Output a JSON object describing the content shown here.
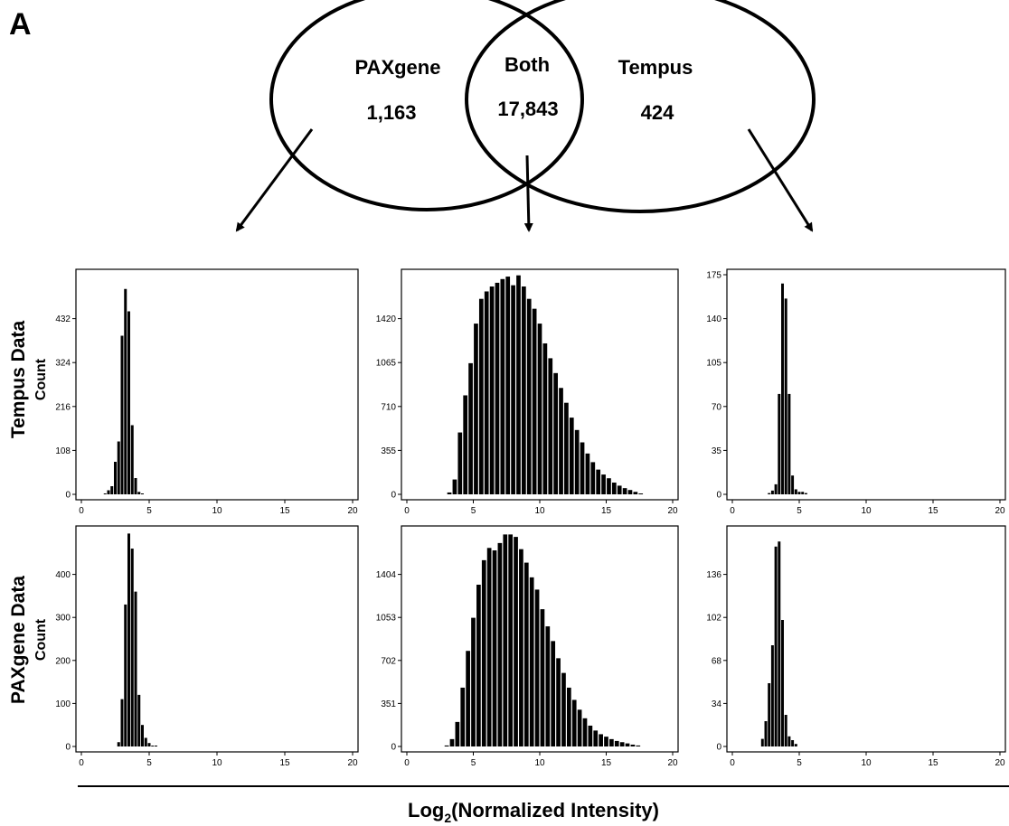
{
  "panel_label": "A",
  "venn": {
    "left": {
      "label": "PAXgene",
      "count": "1,163"
    },
    "both": {
      "label": "Both",
      "count": "17,843"
    },
    "right": {
      "label": "Tempus",
      "count": "424"
    }
  },
  "row_labels": [
    "Tempus Data",
    "PAXgene Data"
  ],
  "ylabel": "Count",
  "xlabel_base": "Log",
  "xlabel_sub": "2",
  "xlabel_rest": "(Normalized Intensity)",
  "chart_data": [
    {
      "type": "bar",
      "panel": "Tempus Data / PAXgene only",
      "xlim": [
        0,
        20
      ],
      "x_ticks": [
        0,
        5,
        10,
        15,
        20
      ],
      "ylim": [
        0,
        540
      ],
      "y_ticks": [
        0,
        108,
        216,
        324,
        432
      ],
      "bin_width": 0.25,
      "x": [
        1.75,
        2.0,
        2.25,
        2.5,
        2.75,
        3.0,
        3.25,
        3.5,
        3.75,
        4.0,
        4.25,
        4.5,
        4.75,
        5.0,
        5.25,
        5.5
      ],
      "values": [
        2,
        10,
        20,
        80,
        130,
        390,
        505,
        450,
        170,
        40,
        6,
        2,
        0,
        0,
        0,
        0
      ]
    },
    {
      "type": "bar",
      "panel": "Tempus Data / Both",
      "xlim": [
        0,
        20
      ],
      "x_ticks": [
        0,
        5,
        10,
        15,
        20
      ],
      "ylim": [
        0,
        1775
      ],
      "y_ticks": [
        0,
        355,
        710,
        1065,
        1420
      ],
      "bin_width": 0.4,
      "x": [
        3.2,
        3.6,
        4.0,
        4.4,
        4.8,
        5.2,
        5.6,
        6.0,
        6.4,
        6.8,
        7.2,
        7.6,
        8.0,
        8.4,
        8.8,
        9.2,
        9.6,
        10.0,
        10.4,
        10.8,
        11.2,
        11.6,
        12.0,
        12.4,
        12.8,
        13.2,
        13.6,
        14.0,
        14.4,
        14.8,
        15.2,
        15.6,
        16.0,
        16.4,
        16.8,
        17.2,
        17.6
      ],
      "values": [
        15,
        120,
        500,
        800,
        1060,
        1380,
        1580,
        1640,
        1680,
        1710,
        1740,
        1760,
        1690,
        1770,
        1680,
        1580,
        1500,
        1380,
        1220,
        1100,
        980,
        860,
        740,
        620,
        520,
        420,
        330,
        260,
        200,
        160,
        130,
        95,
        70,
        50,
        35,
        20,
        5
      ]
    },
    {
      "type": "bar",
      "panel": "Tempus Data / Tempus only",
      "xlim": [
        0,
        20
      ],
      "x_ticks": [
        0,
        5,
        10,
        15,
        20
      ],
      "ylim": [
        0,
        175
      ],
      "y_ticks": [
        0,
        35,
        70,
        105,
        140,
        175
      ],
      "bin_width": 0.25,
      "x": [
        2.75,
        3.0,
        3.25,
        3.5,
        3.75,
        4.0,
        4.25,
        4.5,
        4.75,
        5.0,
        5.25,
        5.5,
        5.75,
        6.0,
        6.25,
        6.5,
        6.75,
        7.0
      ],
      "values": [
        1,
        3,
        8,
        80,
        168,
        156,
        80,
        15,
        4,
        2,
        2,
        1,
        0,
        0,
        0,
        0,
        0,
        0
      ]
    },
    {
      "type": "bar",
      "panel": "PAXgene Data / PAXgene only",
      "xlim": [
        0,
        20
      ],
      "x_ticks": [
        0,
        5,
        10,
        15,
        20
      ],
      "ylim": [
        0,
        500
      ],
      "y_ticks": [
        0,
        100,
        200,
        300,
        400
      ],
      "bin_width": 0.25,
      "x": [
        2.75,
        3.0,
        3.25,
        3.5,
        3.75,
        4.0,
        4.25,
        4.5,
        4.75,
        5.0,
        5.25,
        5.5,
        5.75,
        6.0,
        6.25,
        6.5,
        6.75,
        7.0,
        7.25
      ],
      "values": [
        10,
        110,
        330,
        495,
        460,
        360,
        120,
        50,
        20,
        8,
        2,
        1,
        0,
        0,
        0,
        0,
        0,
        0,
        0
      ]
    },
    {
      "type": "bar",
      "panel": "PAXgene Data / Both",
      "xlim": [
        0,
        20
      ],
      "x_ticks": [
        0,
        5,
        10,
        15,
        20
      ],
      "ylim": [
        0,
        1755
      ],
      "y_ticks": [
        0,
        351,
        702,
        1053,
        1404
      ],
      "bin_width": 0.4,
      "x": [
        3.0,
        3.4,
        3.8,
        4.2,
        4.6,
        5.0,
        5.4,
        5.8,
        6.2,
        6.6,
        7.0,
        7.4,
        7.8,
        8.2,
        8.6,
        9.0,
        9.4,
        9.8,
        10.2,
        10.6,
        11.0,
        11.4,
        11.8,
        12.2,
        12.6,
        13.0,
        13.4,
        13.8,
        14.2,
        14.6,
        15.0,
        15.4,
        15.8,
        16.2,
        16.6,
        17.0,
        17.4
      ],
      "values": [
        8,
        60,
        200,
        480,
        780,
        1050,
        1320,
        1520,
        1620,
        1600,
        1660,
        1730,
        1730,
        1710,
        1610,
        1500,
        1380,
        1280,
        1120,
        980,
        860,
        720,
        600,
        480,
        380,
        300,
        230,
        170,
        130,
        100,
        80,
        60,
        45,
        35,
        25,
        15,
        8
      ]
    },
    {
      "type": "bar",
      "panel": "PAXgene Data / Tempus only",
      "xlim": [
        0,
        20
      ],
      "x_ticks": [
        0,
        5,
        10,
        15,
        20
      ],
      "ylim": [
        0,
        170
      ],
      "y_ticks": [
        0,
        34,
        68,
        102,
        136
      ],
      "bin_width": 0.25,
      "x": [
        2.25,
        2.5,
        2.75,
        3.0,
        3.25,
        3.5,
        3.75,
        4.0,
        4.25,
        4.5,
        4.75,
        5.0
      ],
      "values": [
        6,
        20,
        50,
        80,
        158,
        162,
        100,
        25,
        8,
        5,
        2,
        0
      ]
    }
  ]
}
